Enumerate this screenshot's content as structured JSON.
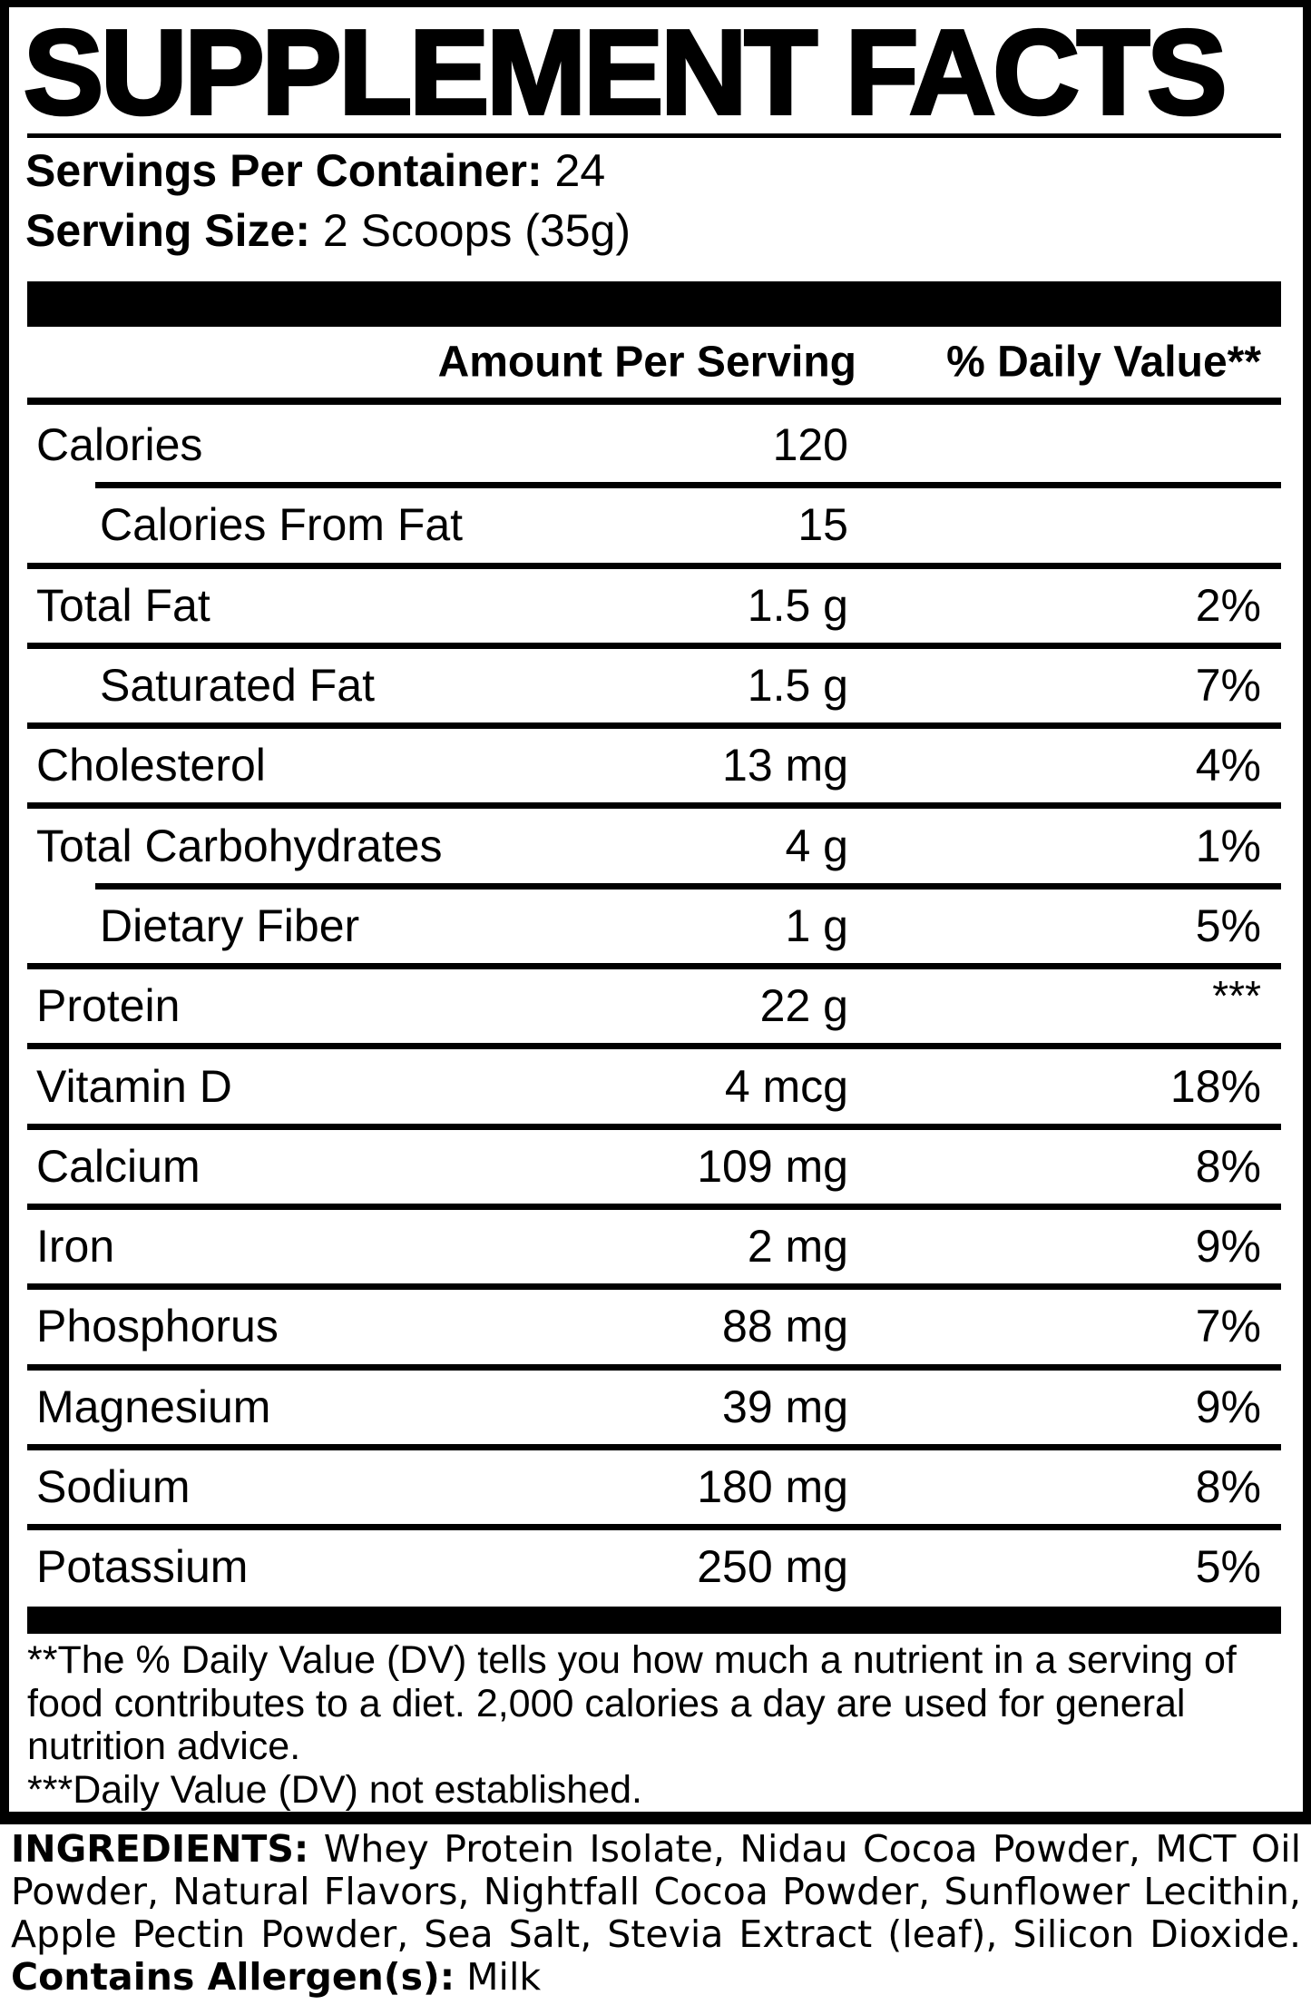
{
  "title": "SUPPLEMENT FACTS",
  "serving_info": {
    "servings_per_container_label": "Servings Per Container:",
    "servings_per_container_value": "24",
    "serving_size_label": "Serving Size:",
    "serving_size_value": "2 Scoops (35g)"
  },
  "table": {
    "header": {
      "amount": "Amount Per Serving",
      "daily_value": "% Daily Value**"
    },
    "rows": [
      {
        "label": "Calories",
        "amount": "120",
        "dv": ""
      },
      {
        "label": "Calories From Fat",
        "amount": "15",
        "dv": ""
      },
      {
        "label": "Total Fat",
        "amount": "1.5 g",
        "dv": "2%"
      },
      {
        "label": "Saturated Fat",
        "amount": "1.5 g",
        "dv": "7%"
      },
      {
        "label": "Cholesterol",
        "amount": "13 mg",
        "dv": "4%"
      },
      {
        "label": "Total Carbohydrates",
        "amount": "4 g",
        "dv": "1%"
      },
      {
        "label": "Dietary Fiber",
        "amount": "1 g",
        "dv": "5%"
      },
      {
        "label": "Protein",
        "amount": "22 g",
        "dv": "***"
      },
      {
        "label": "Vitamin D",
        "amount": "4 mcg",
        "dv": "18%"
      },
      {
        "label": "Calcium",
        "amount": "109 mg",
        "dv": "8%"
      },
      {
        "label": "Iron",
        "amount": "2 mg",
        "dv": "9%"
      },
      {
        "label": "Phosphorus",
        "amount": "88 mg",
        "dv": "7%"
      },
      {
        "label": "Magnesium",
        "amount": "39 mg",
        "dv": "9%"
      },
      {
        "label": "Sodium",
        "amount": "180 mg",
        "dv": "8%"
      },
      {
        "label": "Potassium",
        "amount": "250 mg",
        "dv": "5%"
      }
    ]
  },
  "footnotes": {
    "daily_value_note": "**The % Daily Value (DV) tells you how much a nutrient in a serving of food contributes to a diet. 2,000 calories a day are used for general nutrition advice.",
    "not_established_note": "***Daily Value (DV) not established."
  },
  "ingredients": {
    "label": "INGREDIENTS:",
    "text": "Whey Protein Isolate, Nidau Cocoa Powder, MCT Oil Powder, Natural Flavors, Nightfall Cocoa Powder, Sunflower Lecithin, Apple Pectin Powder, Sea Salt, Stevia Extract (leaf), Silicon Dioxide.",
    "allergen_label": "Contains Allergen(s):",
    "allergen_value": "Milk"
  },
  "colors": {
    "ink": "#000000",
    "paper": "#ffffff"
  }
}
